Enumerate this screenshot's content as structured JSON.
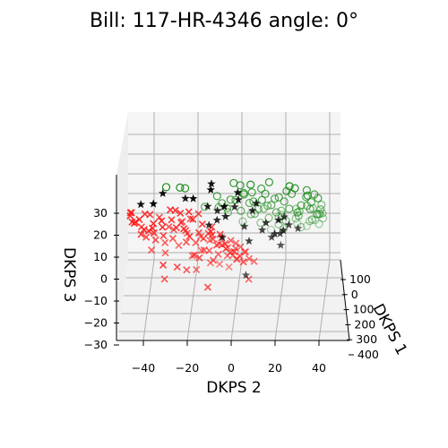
{
  "chart_data": {
    "type": "scatter",
    "title": "Bill: 117-HR-4346 angle: 0°",
    "xlabel": "DKPS 1",
    "ylabel": "DKPS 2",
    "zlabel": "DKPS 3",
    "x_ticks": [
      "100",
      "0",
      "100",
      "200",
      "300",
      "400"
    ],
    "y_ticks": [
      "−40",
      "−20",
      "0",
      "20",
      "40"
    ],
    "z_ticks": [
      "30",
      "20",
      "10",
      "0",
      "−10",
      "−20",
      "−30"
    ],
    "xlim": [
      -150,
      400
    ],
    "ylim": [
      -50,
      50
    ],
    "zlim": [
      -30,
      40
    ],
    "grid": true,
    "colors": {
      "green": "#1a8c1a",
      "red": "#ff1a1a",
      "black": "#000000"
    },
    "series": [
      {
        "marker": "open-circle",
        "color": "#1a8c1a",
        "points": [
          [
            -60,
            -28,
            38
          ],
          [
            -40,
            -22,
            37
          ],
          [
            -20,
            -20,
            36
          ],
          [
            -10,
            2,
            38
          ],
          [
            -10,
            5,
            37
          ],
          [
            -30,
            10,
            38
          ],
          [
            0,
            18,
            38
          ],
          [
            -50,
            28,
            38
          ],
          [
            -20,
            30,
            36
          ],
          [
            10,
            35,
            34
          ],
          [
            20,
            40,
            30
          ],
          [
            -30,
            36,
            33
          ],
          [
            0,
            26,
            34
          ],
          [
            30,
            14,
            34
          ],
          [
            40,
            6,
            31
          ],
          [
            20,
            -6,
            31
          ],
          [
            30,
            0,
            29
          ],
          [
            50,
            14,
            28
          ],
          [
            60,
            24,
            27
          ],
          [
            40,
            32,
            26
          ],
          [
            50,
            36,
            24
          ],
          [
            70,
            40,
            21
          ],
          [
            60,
            30,
            22
          ],
          [
            80,
            26,
            23
          ],
          [
            90,
            16,
            24
          ],
          [
            70,
            8,
            26
          ],
          [
            90,
            20,
            21
          ],
          [
            100,
            30,
            19
          ],
          [
            110,
            36,
            17
          ],
          [
            120,
            24,
            16
          ],
          [
            130,
            16,
            17
          ],
          [
            120,
            8,
            19
          ],
          [
            140,
            4,
            15
          ],
          [
            150,
            12,
            14
          ],
          [
            160,
            20,
            13
          ],
          [
            150,
            28,
            16
          ],
          [
            170,
            34,
            14
          ],
          [
            160,
            40,
            18
          ],
          [
            180,
            30,
            11
          ],
          [
            190,
            22,
            10
          ],
          [
            200,
            28,
            12
          ],
          [
            210,
            36,
            13
          ],
          [
            200,
            16,
            9
          ],
          [
            40,
            -4,
            27
          ],
          [
            50,
            -12,
            25
          ],
          [
            60,
            -2,
            24
          ],
          [
            30,
            22,
            30
          ],
          [
            20,
            28,
            32
          ],
          [
            80,
            4,
            22
          ],
          [
            100,
            10,
            20
          ],
          [
            110,
            22,
            21
          ],
          [
            130,
            30,
            20
          ],
          [
            140,
            36,
            21
          ],
          [
            90,
            34,
            24
          ],
          [
            70,
            18,
            25
          ],
          [
            60,
            10,
            27
          ],
          [
            50,
            2,
            28
          ],
          [
            80,
            12,
            23
          ],
          [
            120,
            38,
            19
          ],
          [
            180,
            40,
            15
          ],
          [
            40,
            20,
            29
          ],
          [
            30,
            6,
            32
          ],
          [
            10,
            10,
            33
          ],
          [
            20,
            16,
            32
          ],
          [
            60,
            34,
            29
          ],
          [
            100,
            40,
            22
          ],
          [
            150,
            38,
            18
          ],
          [
            190,
            38,
            12
          ],
          [
            140,
            22,
            18
          ],
          [
            110,
            14,
            22
          ],
          [
            90,
            -2,
            21
          ],
          [
            70,
            -6,
            24
          ],
          [
            160,
            28,
            20
          ],
          [
            130,
            40,
            23
          ],
          [
            170,
            20,
            16
          ],
          [
            220,
            32,
            10
          ],
          [
            80,
            36,
            26
          ],
          [
            40,
            38,
            31
          ]
        ]
      },
      {
        "marker": "x",
        "color": "#ff1a1a",
        "points": [
          [
            -80,
            -40,
            24
          ],
          [
            -60,
            -42,
            22
          ],
          [
            -40,
            -38,
            25
          ],
          [
            -50,
            -34,
            21
          ],
          [
            -70,
            -30,
            23
          ],
          [
            -40,
            -30,
            19
          ],
          [
            -30,
            -26,
            22
          ],
          [
            -20,
            -24,
            18
          ],
          [
            -10,
            -22,
            20
          ],
          [
            0,
            -20,
            16
          ],
          [
            -20,
            -18,
            14
          ],
          [
            0,
            -14,
            15
          ],
          [
            10,
            -12,
            12
          ],
          [
            20,
            -10,
            14
          ],
          [
            30,
            -8,
            11
          ],
          [
            10,
            -6,
            9
          ],
          [
            0,
            -2,
            10
          ],
          [
            20,
            -2,
            7
          ],
          [
            40,
            -4,
            8
          ],
          [
            30,
            0,
            5
          ],
          [
            50,
            2,
            6
          ],
          [
            40,
            4,
            3
          ],
          [
            60,
            6,
            4
          ],
          [
            20,
            6,
            1
          ],
          [
            -60,
            -36,
            18
          ],
          [
            -30,
            -34,
            16
          ],
          [
            -10,
            -30,
            14
          ],
          [
            10,
            -26,
            12
          ],
          [
            20,
            -20,
            10
          ],
          [
            40,
            -16,
            9
          ],
          [
            30,
            -12,
            6
          ],
          [
            50,
            -10,
            5
          ],
          [
            60,
            -6,
            3
          ],
          [
            70,
            -2,
            2
          ],
          [
            80,
            2,
            0
          ],
          [
            60,
            8,
            1
          ],
          [
            -80,
            -44,
            27
          ],
          [
            -50,
            -44,
            26
          ],
          [
            -20,
            -36,
            24
          ],
          [
            0,
            -32,
            22
          ],
          [
            -30,
            -22,
            25
          ],
          [
            -50,
            -24,
            27
          ],
          [
            -70,
            -26,
            28
          ],
          [
            -40,
            -18,
            26
          ],
          [
            -10,
            -14,
            24
          ],
          [
            10,
            -18,
            21
          ],
          [
            30,
            -22,
            19
          ],
          [
            20,
            -28,
            17
          ],
          [
            40,
            -26,
            15
          ],
          [
            50,
            -20,
            13
          ],
          [
            60,
            -14,
            11
          ],
          [
            70,
            -10,
            9
          ],
          [
            80,
            -6,
            7
          ],
          [
            90,
            -2,
            5
          ],
          [
            -10,
            -8,
            18
          ],
          [
            -30,
            -12,
            20
          ],
          [
            -50,
            -16,
            23
          ],
          [
            0,
            -8,
            14
          ],
          [
            20,
            -4,
            12
          ],
          [
            40,
            0,
            10
          ],
          [
            60,
            2,
            8
          ],
          [
            10,
            2,
            6
          ],
          [
            -20,
            -4,
            15
          ],
          [
            -40,
            -8,
            17
          ],
          [
            70,
            4,
            6
          ],
          [
            90,
            6,
            3
          ],
          [
            100,
            0,
            1
          ],
          [
            80,
            -14,
            4
          ],
          [
            60,
            -24,
            7
          ],
          [
            40,
            -30,
            9
          ],
          [
            20,
            -34,
            11
          ],
          [
            0,
            -38,
            13
          ],
          [
            -20,
            -40,
            15
          ],
          [
            -60,
            -20,
            19
          ],
          [
            -80,
            -34,
            20
          ],
          [
            30,
            -36,
            6
          ],
          [
            50,
            -30,
            4
          ],
          [
            70,
            -18,
            2
          ],
          [
            110,
            2,
            -1
          ],
          [
            90,
            -10,
            -2
          ],
          [
            30,
            -20,
            -3
          ],
          [
            120,
            -2,
            -5
          ],
          [
            60,
            -16,
            -4
          ],
          [
            10,
            -24,
            -1
          ],
          [
            -20,
            -30,
            1
          ],
          [
            -5,
            -16,
            5
          ],
          [
            15,
            -14,
            3
          ],
          [
            40,
            -8,
            1
          ],
          [
            100,
            -6,
            -3
          ],
          [
            80,
            10,
            -1
          ],
          [
            -90,
            -44,
            26
          ],
          [
            -100,
            -42,
            23
          ],
          [
            -30,
            -44,
            21
          ],
          [
            -70,
            -38,
            19
          ],
          [
            -10,
            -40,
            18
          ],
          [
            25,
            -30,
            -7
          ],
          [
            50,
            8,
            -8
          ],
          [
            5,
            -10,
            -10
          ]
        ]
      },
      {
        "marker": "star",
        "color": "#000000",
        "points": [
          [
            -30,
            -30,
            34
          ],
          [
            -20,
            -8,
            38
          ],
          [
            -40,
            -16,
            32
          ],
          [
            -10,
            -20,
            31
          ],
          [
            -30,
            -40,
            29
          ],
          [
            -20,
            4,
            34
          ],
          [
            -30,
            -2,
            28
          ],
          [
            0,
            -10,
            27
          ],
          [
            20,
            2,
            26
          ],
          [
            30,
            10,
            24
          ],
          [
            10,
            -2,
            22
          ],
          [
            20,
            -6,
            20
          ],
          [
            40,
            16,
            18
          ],
          [
            50,
            6,
            16
          ],
          [
            30,
            24,
            15
          ],
          [
            60,
            14,
            14
          ],
          [
            70,
            22,
            12
          ],
          [
            80,
            18,
            10
          ],
          [
            70,
            26,
            16
          ],
          [
            40,
            20,
            13
          ],
          [
            20,
            22,
            20
          ],
          [
            50,
            -4,
            11
          ],
          [
            60,
            8,
            9
          ],
          [
            100,
            6,
            -8
          ],
          [
            90,
            22,
            6
          ],
          [
            -50,
            -34,
            30
          ],
          [
            30,
            -6,
            24
          ],
          [
            0,
            4,
            30
          ],
          [
            -40,
            -8,
            36
          ],
          [
            10,
            12,
            28
          ],
          [
            60,
            24,
            20
          ],
          [
            80,
            30,
            14
          ],
          [
            40,
            -10,
            17
          ]
        ]
      }
    ]
  }
}
